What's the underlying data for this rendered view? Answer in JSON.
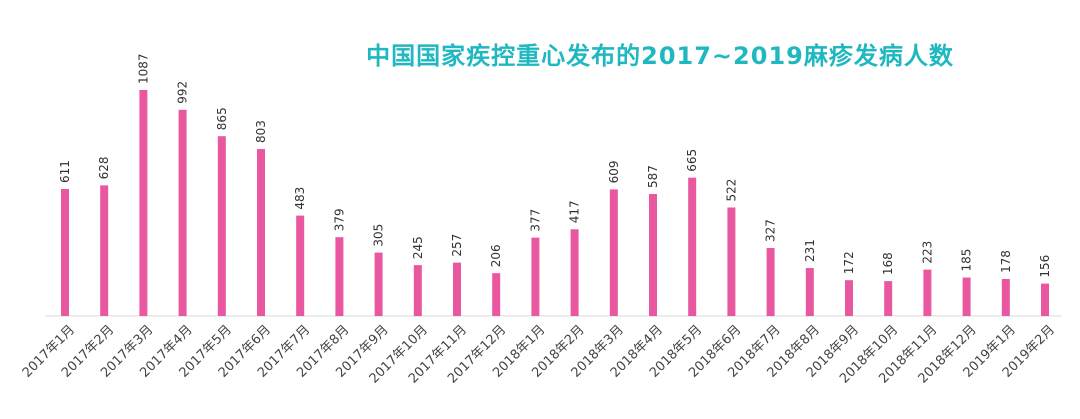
{
  "chart_data": {
    "type": "bar",
    "title": "中国国家疾控重心发布的2017~2019麻疹发病人数",
    "categories": [
      "2017年1月",
      "2017年2月",
      "2017年3月",
      "2017年4月",
      "2017年5月",
      "2017年6月",
      "2017年7月",
      "2017年8月",
      "2017年9月",
      "2017年10月",
      "2017年11月",
      "2017年12月",
      "2018年1月",
      "2018年2月",
      "2018年3月",
      "2018年4月",
      "2018年5月",
      "2018年6月",
      "2018年7月",
      "2018年8月",
      "2018年9月",
      "2018年10月",
      "2018年11月",
      "2018年12月",
      "2019年1月",
      "2019年2月"
    ],
    "values": [
      611,
      628,
      1087,
      992,
      865,
      803,
      483,
      379,
      305,
      245,
      257,
      206,
      377,
      417,
      609,
      587,
      665,
      522,
      327,
      231,
      172,
      168,
      223,
      185,
      178,
      156
    ],
    "xlabel": "",
    "ylabel": "",
    "ylim": [
      0,
      1087
    ],
    "grid": false,
    "legend": "none",
    "bar_color": "#e8579f",
    "title_color": "#1fb8c0"
  }
}
